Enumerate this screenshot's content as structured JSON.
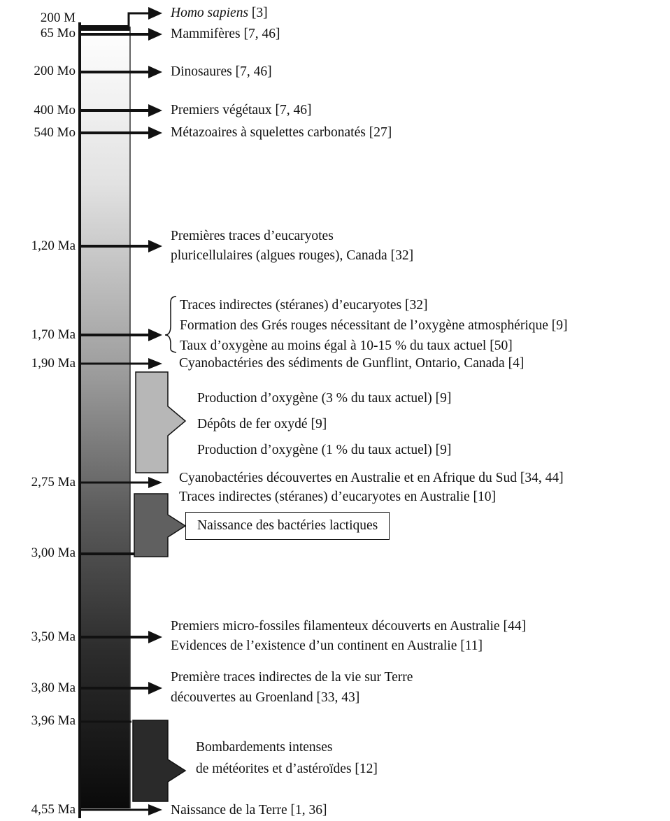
{
  "bar": {
    "top_color": "#ffffff",
    "bottom_color": "#0a0a0a"
  },
  "ages": [
    {
      "id": "200m",
      "label": "200 M"
    },
    {
      "id": "65mo",
      "label": "65 Mo"
    },
    {
      "id": "200mo",
      "label": "200 Mo"
    },
    {
      "id": "400mo",
      "label": "400 Mo"
    },
    {
      "id": "540mo",
      "label": "540 Mo"
    },
    {
      "id": "1-20ma",
      "label": "1,20 Ma"
    },
    {
      "id": "1-70ma",
      "label": "1,70 Ma"
    },
    {
      "id": "1-90ma",
      "label": "1,90 Ma"
    },
    {
      "id": "2-75ma",
      "label": "2,75 Ma"
    },
    {
      "id": "3-00ma",
      "label": "3,00 Ma"
    },
    {
      "id": "3-50ma",
      "label": "3,50 Ma"
    },
    {
      "id": "3-80ma",
      "label": "3,80 Ma"
    },
    {
      "id": "3-96ma",
      "label": "3,96 Ma"
    },
    {
      "id": "4-55ma",
      "label": "4,55 Ma"
    }
  ],
  "events": {
    "homo_sapiens": {
      "name": "Homo sapiens",
      "ref": " [3]"
    },
    "mammiferes": "Mammifères [7, 46]",
    "dinosaures": "Dinosaures [7, 46]",
    "vegetaux": "Premiers végétaux [7, 46]",
    "metazoaires": "Métazoaires à squelettes carbonatés [27]",
    "eucaryotes_1": "Premières traces d’eucaryotes",
    "eucaryotes_2": "pluricellulaires (algues rouges), Canada [32]",
    "steranes": "Traces indirectes (stéranes) d’eucaryotes  [32]",
    "gres": "Formation des Grés rouges nécessitant de l’oxygène atmosphérique [9]",
    "taux": "Taux d’oxygène au moins égal à 10-15 % du taux actuel [50]",
    "gunflint": "Cyanobactéries des sédiments de Gunflint, Ontario, Canada [4]",
    "oxy3": "Production d’oxygène (3 % du taux actuel) [9]",
    "fer": "Dépôts de fer oxydé [9]",
    "oxy1": "Production d’oxygène (1 % du taux actuel) [9]",
    "cyano_aus": "Cyanobactéries découvertes en Australie et en Afrique du Sud [34, 44]",
    "steranes_aus": "Traces indirectes (stéranes) d’eucaryotes en Australie [10]",
    "lactiques": "Naissance des bactéries lactiques",
    "microfossiles": "Premiers micro-fossiles filamenteux découverts en Australie [44]",
    "continent": "Evidences de l’existence d’un continent en Australie [11]",
    "vie_1": "Première traces indirectes de la vie sur Terre",
    "vie_2": "découvertes au Groenland [33, 43]",
    "bombard_1": "Bombardements intenses",
    "bombard_2": "de météorites et d’astéroïdes [12]",
    "terre": "Naissance de la Terre [1, 36]"
  }
}
